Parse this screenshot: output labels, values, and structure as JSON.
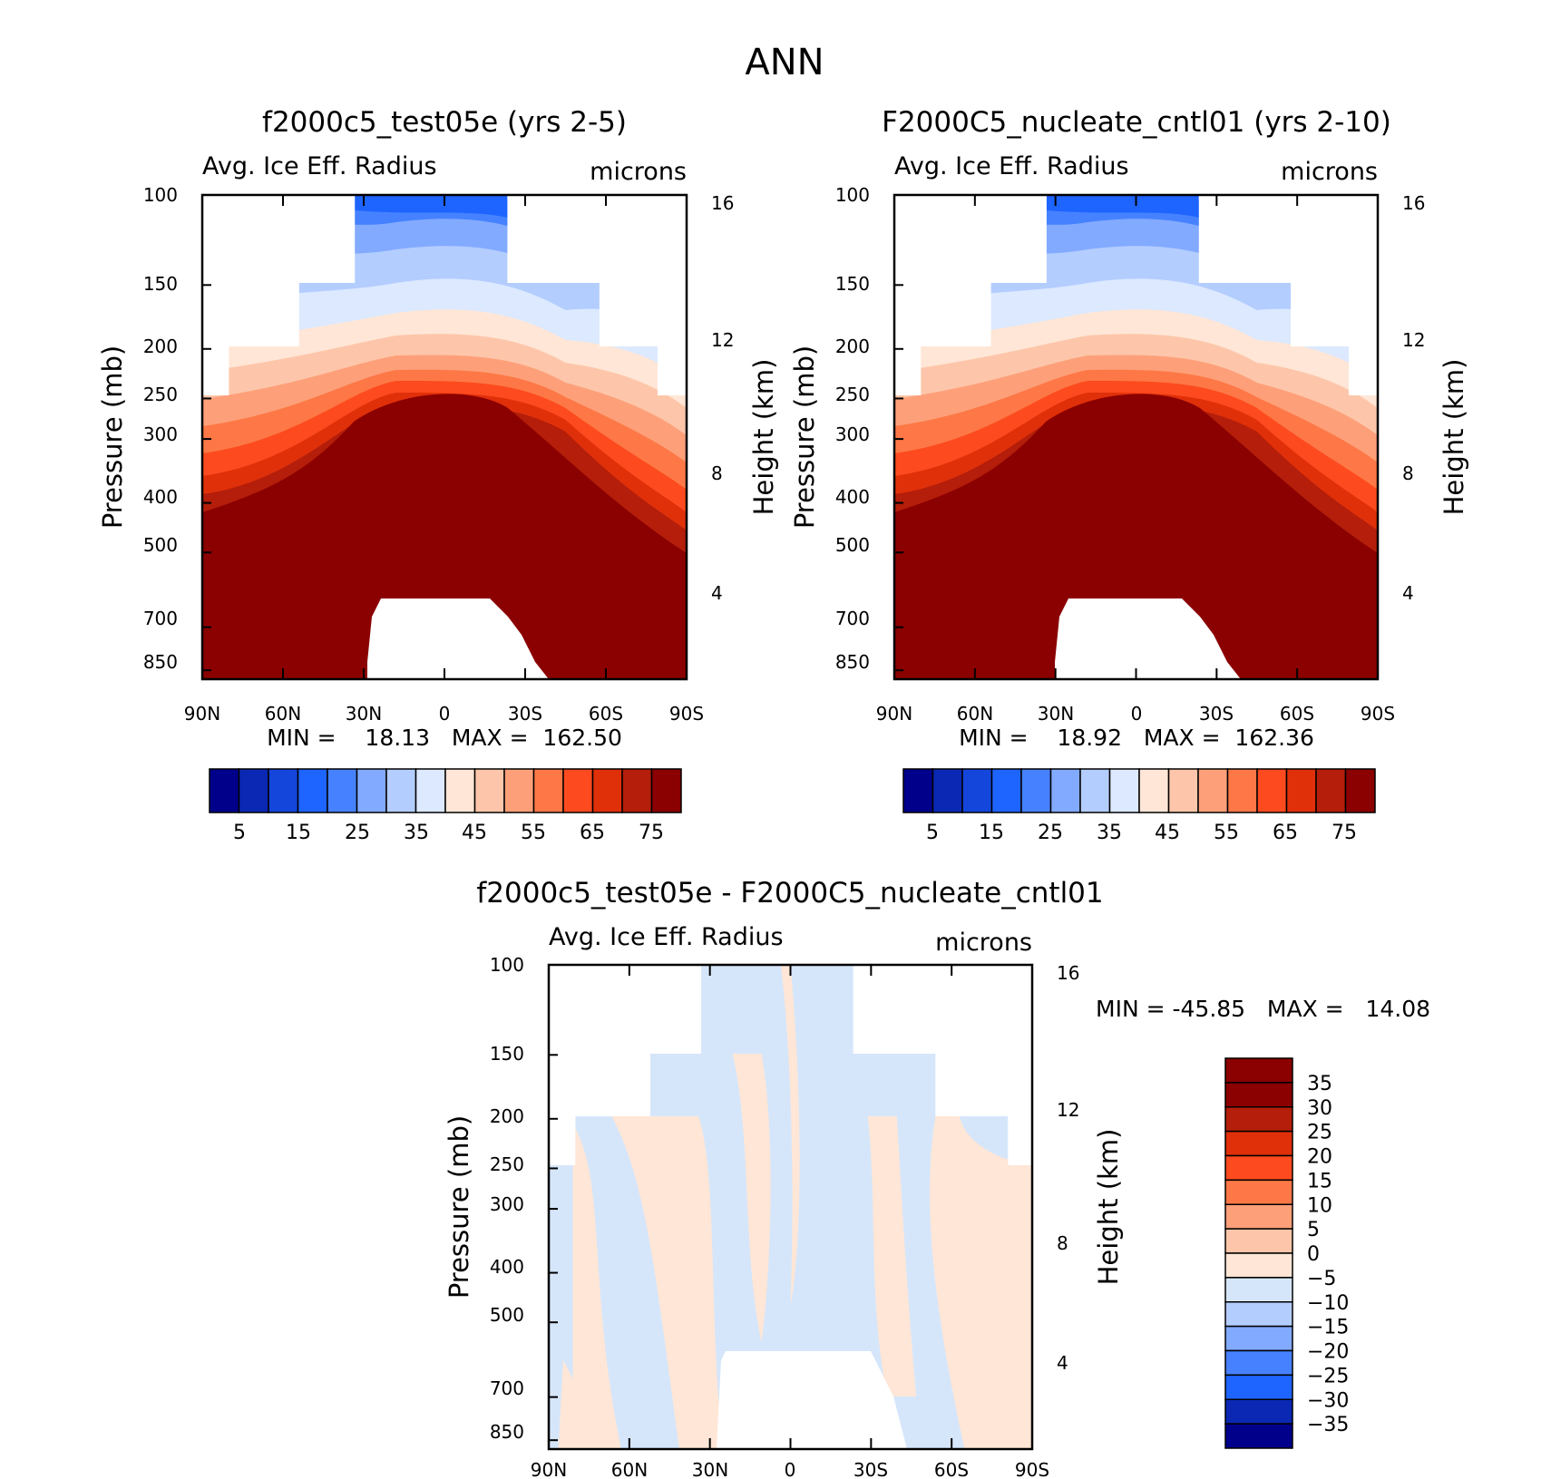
{
  "figure_title": "ANN",
  "chart_data": [
    {
      "type": "contour",
      "id": "panel1",
      "title": "f2000c5_test05e (yrs 2-5)",
      "left_label": "Avg. Ice Eff. Radius",
      "right_label": "microns",
      "ylabel": "Pressure (mb)",
      "y2label": "Height (km)",
      "x_ticks": [
        "90N",
        "60N",
        "30N",
        "0",
        "30S",
        "60S",
        "90S"
      ],
      "y_ticks": [
        "100",
        "150",
        "200",
        "250",
        "300",
        "400",
        "500",
        "700",
        "850"
      ],
      "y2_ticks": [
        "16",
        "12",
        "8",
        "4"
      ],
      "stats": "MIN =    18.13   MAX =  162.50",
      "min": 18.13,
      "max": 162.5,
      "colorbar_labels": [
        "5",
        "15",
        "25",
        "35",
        "45",
        "55",
        "65",
        "75"
      ]
    },
    {
      "type": "contour",
      "id": "panel2",
      "title": "F2000C5_nucleate_cntl01 (yrs 2-10)",
      "left_label": "Avg. Ice Eff. Radius",
      "right_label": "microns",
      "ylabel": "Pressure (mb)",
      "y2label": "Height (km)",
      "x_ticks": [
        "90N",
        "60N",
        "30N",
        "0",
        "30S",
        "60S",
        "90S"
      ],
      "y_ticks": [
        "100",
        "150",
        "200",
        "250",
        "300",
        "400",
        "500",
        "700",
        "850"
      ],
      "y2_ticks": [
        "16",
        "12",
        "8",
        "4"
      ],
      "stats": "MIN =    18.92   MAX =  162.36",
      "min": 18.92,
      "max": 162.36,
      "colorbar_labels": [
        "5",
        "15",
        "25",
        "35",
        "45",
        "55",
        "65",
        "75"
      ]
    },
    {
      "type": "contour",
      "id": "panel3",
      "title": "f2000c5_test05e - F2000C5_nucleate_cntl01",
      "left_label": "Avg. Ice Eff. Radius",
      "right_label": "microns",
      "ylabel": "Pressure (mb)",
      "y2label": "Height (km)",
      "x_ticks": [
        "90N",
        "60N",
        "30N",
        "0",
        "30S",
        "60S",
        "90S"
      ],
      "y_ticks": [
        "100",
        "150",
        "200",
        "250",
        "300",
        "400",
        "500",
        "700",
        "850"
      ],
      "y2_ticks": [
        "16",
        "12",
        "8",
        "4"
      ],
      "stats": "MIN = -45.85   MAX =   14.08",
      "min": -45.85,
      "max": 14.08,
      "colorbar_labels": [
        "35",
        "30",
        "25",
        "20",
        "15",
        "10",
        "5",
        "0",
        "-5",
        "-10",
        "-15",
        "-20",
        "-25",
        "-30",
        "-35"
      ]
    }
  ],
  "colors": {
    "abs_scale": [
      "#00008b",
      "#0a28b4",
      "#1446dc",
      "#1e64ff",
      "#4682ff",
      "#82aaff",
      "#b4cdff",
      "#dce9ff",
      "#ffe6d6",
      "#fdc6aa",
      "#fda07a",
      "#fd7846",
      "#fd4a1e",
      "#e0300a",
      "#b41e0a",
      "#8b0000"
    ],
    "diff_scale": [
      "#8b0000",
      "#b41e0a",
      "#e0300a",
      "#fd4a1e",
      "#fd7846",
      "#fda07a",
      "#fdc6aa",
      "#ffe6d6",
      "#d6e6fa",
      "#b4cdff",
      "#82aaff",
      "#4682ff",
      "#1e64ff",
      "#0a28b4",
      "#00008b"
    ]
  }
}
